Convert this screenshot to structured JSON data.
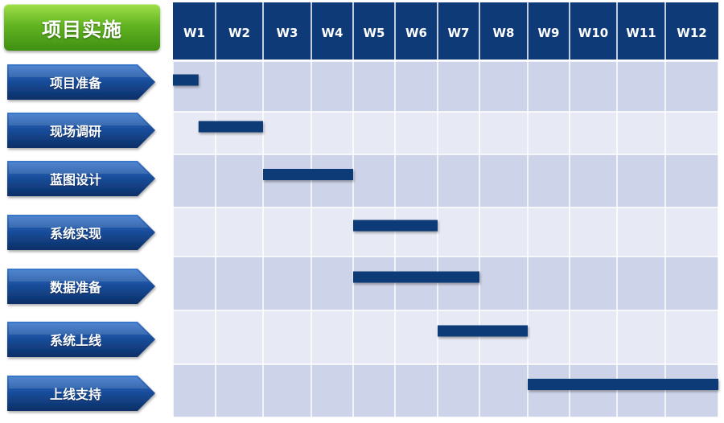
{
  "title": "项目实施",
  "colors": {
    "header": "#0e3a78",
    "header_line": "#ffffff",
    "row_dark": "#cdd3e8",
    "row_light": "#e7e9f4",
    "bar": "#0e3a78",
    "arrow_top": "#1e5bb4",
    "arrow_bottom": "#0b3473",
    "title_green": "#4fa51a"
  },
  "chart_data": {
    "type": "table",
    "subtype": "gantt",
    "weeks": [
      "W1",
      "W2",
      "W3",
      "W4",
      "W5",
      "W6",
      "W7",
      "W8",
      "W9",
      "W10",
      "W11",
      "W12"
    ],
    "tasks": [
      {
        "name": "项目准备",
        "start_week": 1.0,
        "end_week": 1.6
      },
      {
        "name": "现场调研",
        "start_week": 1.6,
        "end_week": 3.0
      },
      {
        "name": "蓝图设计",
        "start_week": 3.0,
        "end_week": 5.0
      },
      {
        "name": "系统实现",
        "start_week": 5.0,
        "end_week": 7.0
      },
      {
        "name": "数据准备",
        "start_week": 5.0,
        "end_week": 8.0
      },
      {
        "name": "系统上线",
        "start_week": 7.0,
        "end_week": 9.0
      },
      {
        "name": "上线支持",
        "start_week": 9.0,
        "end_week": 13.0
      }
    ]
  }
}
